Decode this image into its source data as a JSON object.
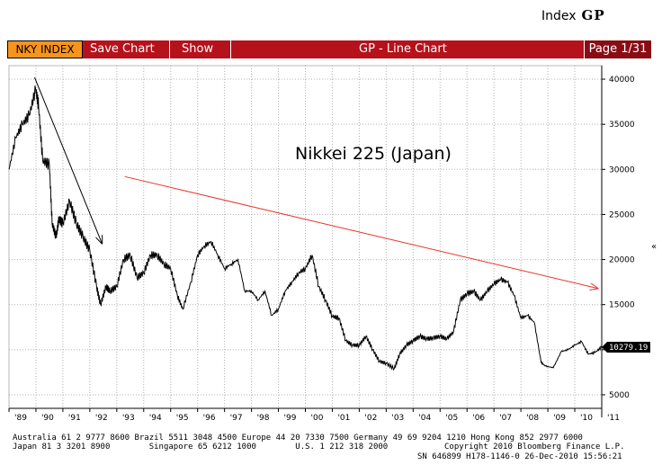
{
  "header": {
    "label": "Index",
    "code": "GP"
  },
  "toolbar": {
    "ticker": "NKY INDEX",
    "save_label": "Save Chart",
    "show_label": "Show",
    "title": "GP - Line Chart",
    "page": "Page 1/31"
  },
  "colors": {
    "toolbar": "#b5121b",
    "ticker_bg": "#f7941d",
    "series": "#000000",
    "trend_down": "#000000",
    "trend_long": "#e8352b"
  },
  "chart_data": {
    "type": "line",
    "title": "Nikkei 225 (Japan)",
    "xlabel": "",
    "ylabel": "",
    "x_ticks": [
      "'89",
      "'90",
      "'91",
      "'92",
      "'93",
      "'94",
      "'95",
      "'96",
      "'97",
      "'98",
      "'99",
      "'00",
      "'01",
      "'02",
      "'03",
      "'04",
      "'05",
      "'06",
      "'07",
      "'08",
      "'09",
      "'10",
      "'11"
    ],
    "y_ticks": [
      5000,
      10000,
      15000,
      20000,
      25000,
      30000,
      35000,
      40000
    ],
    "ylim": [
      3500,
      41500
    ],
    "xlim": [
      1989.0,
      2011.0
    ],
    "grid": true,
    "last_value": "10279.19",
    "series": [
      {
        "name": "",
        "x": [
          1989.0,
          1989.25,
          1989.5,
          1989.75,
          1989.99,
          1990.1,
          1990.25,
          1990.5,
          1990.6,
          1990.75,
          1990.85,
          1991.0,
          1991.25,
          1991.5,
          1991.75,
          1992.0,
          1992.25,
          1992.4,
          1992.6,
          1992.75,
          1993.0,
          1993.25,
          1993.5,
          1993.75,
          1994.0,
          1994.25,
          1994.5,
          1994.75,
          1995.0,
          1995.25,
          1995.45,
          1995.75,
          1996.0,
          1996.25,
          1996.5,
          1996.75,
          1997.0,
          1997.25,
          1997.5,
          1997.75,
          1998.0,
          1998.25,
          1998.5,
          1998.75,
          1999.0,
          1999.25,
          1999.5,
          1999.75,
          2000.0,
          2000.25,
          2000.5,
          2000.75,
          2001.0,
          2001.25,
          2001.5,
          2001.75,
          2002.0,
          2002.25,
          2002.5,
          2002.75,
          2003.0,
          2003.3,
          2003.5,
          2003.75,
          2004.0,
          2004.25,
          2004.5,
          2004.75,
          2005.0,
          2005.25,
          2005.5,
          2005.75,
          2006.0,
          2006.25,
          2006.5,
          2006.75,
          2007.0,
          2007.25,
          2007.5,
          2007.75,
          2008.0,
          2008.25,
          2008.5,
          2008.75,
          2008.9,
          2009.2,
          2009.5,
          2009.75,
          2010.0,
          2010.25,
          2010.5,
          2010.75,
          2010.99
        ],
        "values": [
          30000,
          33500,
          35000,
          36000,
          38900,
          37000,
          31000,
          30500,
          24000,
          22500,
          24500,
          24000,
          26500,
          24000,
          22500,
          21000,
          17000,
          15000,
          17000,
          16500,
          17000,
          20000,
          20500,
          18000,
          18500,
          20500,
          20500,
          19500,
          19000,
          16000,
          14500,
          17500,
          20500,
          21500,
          22000,
          20500,
          19000,
          19500,
          20000,
          16500,
          16500,
          15500,
          16500,
          13800,
          14500,
          16500,
          17500,
          18500,
          19000,
          20500,
          17000,
          15500,
          13700,
          13500,
          11000,
          10500,
          10500,
          11500,
          10000,
          8700,
          8500,
          7900,
          9500,
          10500,
          11000,
          11500,
          11200,
          11300,
          11500,
          11200,
          12000,
          15500,
          16200,
          16500,
          15500,
          16500,
          17300,
          17800,
          17500,
          16000,
          13500,
          13800,
          13000,
          8600,
          8200,
          8000,
          9800,
          10000,
          10500,
          10900,
          9500,
          9700,
          10279
        ]
      }
    ],
    "annotations": [
      "Nikkei 225 (Japan)"
    ]
  },
  "footer": {
    "line1_left": "Australia 61 2 9777 8600 Brazil 5511 3048 4500 Europe 44 20 7330 7500 Germany 49 69 9204 1210 Hong Kong 852 2977 6000",
    "line2_left": "Japan 81 3 3201 8900        Singapore 65 6212 1000        U.S. 1 212 318 2000",
    "line2_right": "Copyright 2010 Bloomberg Finance L.P.",
    "line3": "SN 646899 H178-1146-0 26-Dec-2010 15:56:21"
  }
}
